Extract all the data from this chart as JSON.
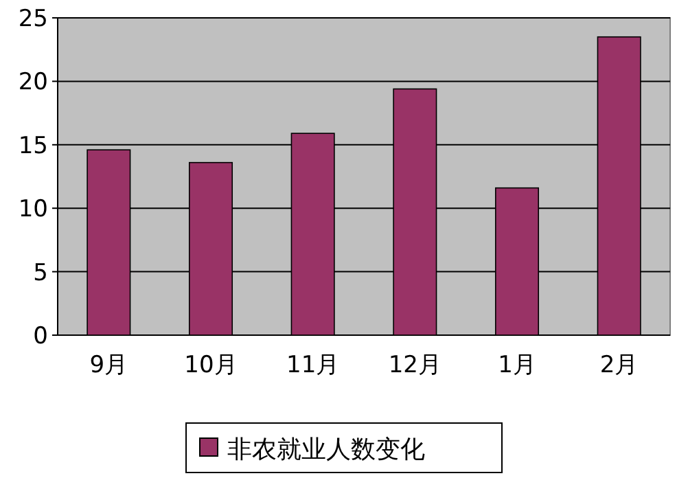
{
  "chart_data": {
    "type": "bar",
    "categories": [
      "9月",
      "10月",
      "11月",
      "12月",
      "1月",
      "2月"
    ],
    "series": [
      {
        "name": "非农就业人数变化",
        "color": "#993366",
        "values": [
          14.6,
          13.6,
          15.9,
          19.4,
          11.6,
          23.5
        ]
      }
    ],
    "ylim": [
      0,
      25
    ],
    "yticks": [
      0,
      5,
      10,
      15,
      20,
      25
    ],
    "grid": "y",
    "legend": "bottom"
  }
}
